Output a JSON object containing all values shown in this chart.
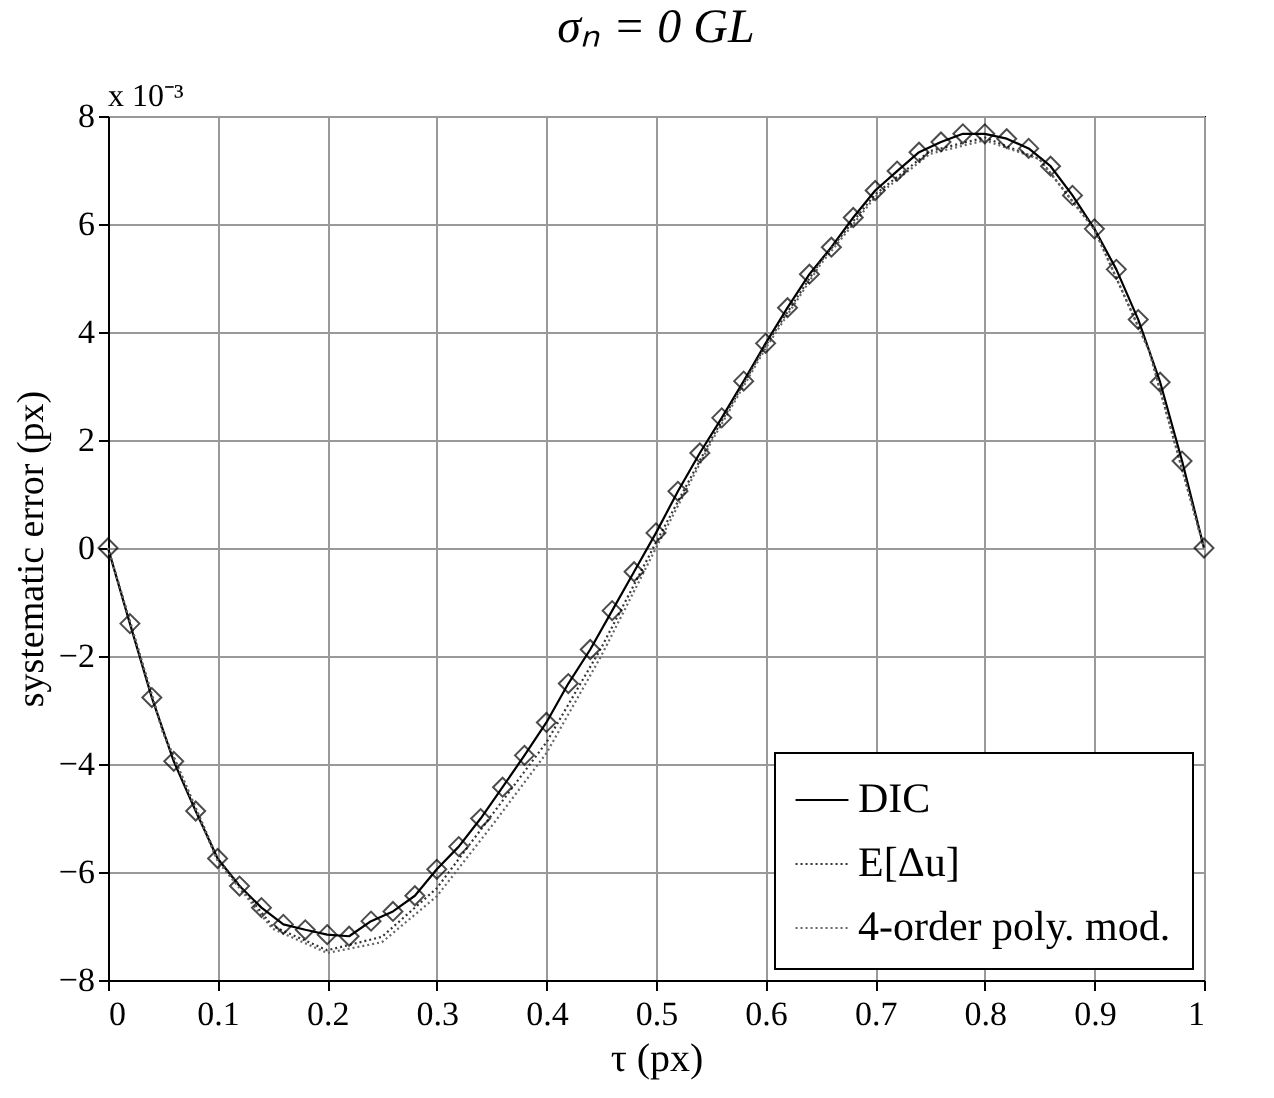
{
  "chart_data": {
    "type": "line",
    "title": "σₙ = 0 GL",
    "xlabel": "τ (px)",
    "ylabel": "systematic error (px)",
    "annotations": [
      "x 10⁻³"
    ],
    "xlim": [
      0,
      1
    ],
    "xticks": [
      0,
      0.1,
      0.2,
      0.3,
      0.4,
      0.5,
      0.6,
      0.7,
      0.8,
      0.9,
      1
    ],
    "ylim": [
      -8,
      8
    ],
    "yticks": [
      -8,
      -6,
      -4,
      -2,
      0,
      2,
      4,
      6,
      8
    ],
    "grid": true,
    "legend": "bottom right",
    "series": [
      {
        "name": "DIC",
        "color": "#000000",
        "marker": "diamond",
        "line_style": "solid",
        "x": [
          0,
          0.02,
          0.04,
          0.06,
          0.08,
          0.1,
          0.12,
          0.14,
          0.16,
          0.18,
          0.2,
          0.22,
          0.24,
          0.26,
          0.28,
          0.3,
          0.32,
          0.34,
          0.36,
          0.38,
          0.4,
          0.42,
          0.44,
          0.46,
          0.48,
          0.5,
          0.52,
          0.54,
          0.56,
          0.58,
          0.6,
          0.62,
          0.64,
          0.66,
          0.68,
          0.7,
          0.72,
          0.74,
          0.76,
          0.78,
          0.8,
          0.82,
          0.84,
          0.86,
          0.88,
          0.9,
          0.92,
          0.94,
          0.96,
          0.98,
          1
        ],
        "values": [
          0,
          -1.4,
          -2.77,
          -3.95,
          -4.87,
          -5.75,
          -6.26,
          -6.66,
          -6.97,
          -7.07,
          -7.16,
          -7.19,
          -6.91,
          -6.73,
          -6.44,
          -5.95,
          -5.53,
          -5.01,
          -4.43,
          -3.84,
          -3.23,
          -2.51,
          -1.88,
          -1.16,
          -0.44,
          0.28,
          1.05,
          1.76,
          2.41,
          3.09,
          3.79,
          4.45,
          5.07,
          5.57,
          6.12,
          6.62,
          6.98,
          7.33,
          7.52,
          7.67,
          7.67,
          7.58,
          7.4,
          7.07,
          6.53,
          5.91,
          5.16,
          4.23,
          3.07,
          1.61,
          0
        ]
      },
      {
        "name": "E[Δu]",
        "color": "#333333",
        "marker": "none",
        "line_style": "dotted",
        "x": [
          0,
          0.05,
          0.1,
          0.15,
          0.2,
          0.25,
          0.3,
          0.35,
          0.4,
          0.45,
          0.5,
          0.55,
          0.6,
          0.65,
          0.7,
          0.75,
          0.8,
          0.85,
          0.9,
          0.95,
          1
        ],
        "values": [
          0,
          -3.4,
          -5.75,
          -7.0,
          -7.45,
          -7.2,
          -6.3,
          -4.95,
          -3.6,
          -1.85,
          0.1,
          2.0,
          3.75,
          5.3,
          6.55,
          7.35,
          7.6,
          7.2,
          5.9,
          3.65,
          0
        ]
      },
      {
        "name": "4-order poly. mod.",
        "color": "#666666",
        "marker": "none",
        "line_style": "dotted",
        "x": [
          0,
          0.05,
          0.1,
          0.15,
          0.2,
          0.25,
          0.3,
          0.35,
          0.4,
          0.45,
          0.5,
          0.55,
          0.6,
          0.65,
          0.7,
          0.75,
          0.8,
          0.85,
          0.9,
          0.95,
          1
        ],
        "values": [
          0,
          -3.4,
          -5.8,
          -7.05,
          -7.5,
          -7.3,
          -6.45,
          -5.15,
          -3.8,
          -2.0,
          0,
          1.95,
          3.7,
          5.25,
          6.5,
          7.3,
          7.55,
          7.2,
          5.9,
          3.65,
          0
        ]
      }
    ]
  }
}
